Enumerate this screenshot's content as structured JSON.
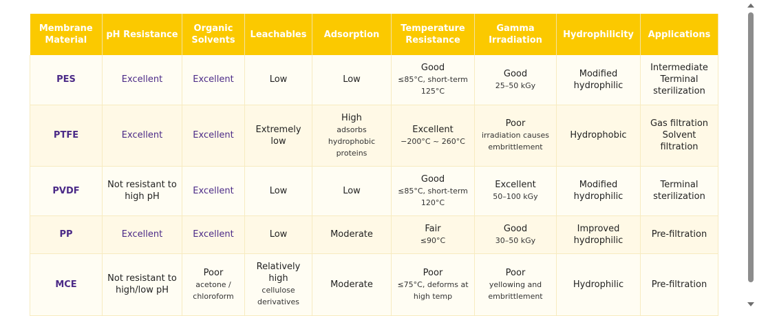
{
  "headers": [
    "Membrane Material",
    "pH Resistance",
    "Organic Solvents",
    "Leachables",
    "Adsorption",
    "Temperature Resistance",
    "Gamma Irradiation",
    "Hydrophilicity",
    "Applications"
  ],
  "rows": [
    {
      "material": "PES",
      "ph": "Excellent",
      "solvents": {
        "main": "Excellent",
        "sub": ""
      },
      "leachables": {
        "main": "Low",
        "sub": ""
      },
      "adsorption": {
        "main": "Low",
        "sub": ""
      },
      "temperature": {
        "main": "Good",
        "sub": "≤85°C, short-term 125°C"
      },
      "gamma": {
        "main": "Good",
        "sub": "25–50 kGy"
      },
      "hydrophilicity": "Modified hydrophilic",
      "applications": "Intermediate Terminal sterilization"
    },
    {
      "material": "PTFE",
      "ph": "Excellent",
      "solvents": {
        "main": "Excellent",
        "sub": ""
      },
      "leachables": {
        "main": "Extremely low",
        "sub": ""
      },
      "adsorption": {
        "main": "High",
        "sub": "adsorbs hydrophobic proteins"
      },
      "temperature": {
        "main": "Excellent",
        "sub": "−200°C ~ 260°C"
      },
      "gamma": {
        "main": "Poor",
        "sub": "irradiation causes embrittlement"
      },
      "hydrophilicity": "Hydrophobic",
      "applications": "Gas filtration Solvent filtration"
    },
    {
      "material": "PVDF",
      "ph": "Not resistant to high pH",
      "solvents": {
        "main": "Excellent",
        "sub": ""
      },
      "leachables": {
        "main": "Low",
        "sub": ""
      },
      "adsorption": {
        "main": "Low",
        "sub": ""
      },
      "temperature": {
        "main": "Good",
        "sub": "≤85°C, short-term 120°C"
      },
      "gamma": {
        "main": "Excellent",
        "sub": "50–100 kGy"
      },
      "hydrophilicity": "Modified hydrophilic",
      "applications": "Terminal sterilization"
    },
    {
      "material": "PP",
      "ph": "Excellent",
      "solvents": {
        "main": "Excellent",
        "sub": ""
      },
      "leachables": {
        "main": "Low",
        "sub": ""
      },
      "adsorption": {
        "main": "Moderate",
        "sub": ""
      },
      "temperature": {
        "main": "Fair",
        "sub": "≤90°C"
      },
      "gamma": {
        "main": "Good",
        "sub": "30–50 kGy"
      },
      "hydrophilicity": "Improved hydrophilic",
      "applications": "Pre-filtration"
    },
    {
      "material": "MCE",
      "ph": "Not resistant to high/low pH",
      "solvents": {
        "main": "Poor",
        "sub": "acetone / chloroform"
      },
      "leachables": {
        "main": "Relatively high",
        "sub": "cellulose derivatives"
      },
      "adsorption": {
        "main": "Moderate",
        "sub": ""
      },
      "temperature": {
        "main": "Poor",
        "sub": "≤75°C, deforms at high temp"
      },
      "gamma": {
        "main": "Poor",
        "sub": "yellowing and embrittlement"
      },
      "hydrophilicity": "Hydrophilic",
      "applications": "Pre-filtration"
    }
  ],
  "colors": {
    "header_bg": "#fbc900",
    "header_text": "#ffffff",
    "material_text": "#4b2a87"
  }
}
